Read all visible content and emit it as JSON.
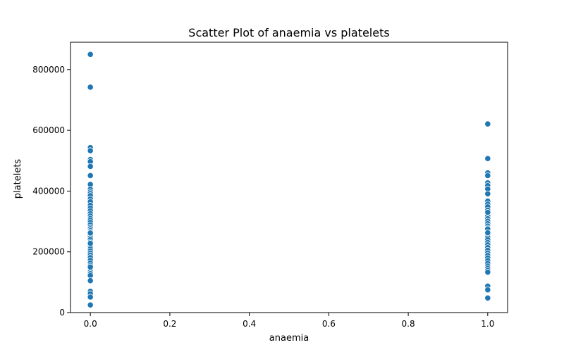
{
  "chart_data": {
    "type": "scatter",
    "title": "Scatter Plot of anaemia vs platelets",
    "xlabel": "anaemia",
    "ylabel": "platelets",
    "xlim": [
      -0.05,
      1.05
    ],
    "ylim": [
      0,
      890000
    ],
    "xticks": [
      0.0,
      0.2,
      0.4,
      0.6,
      0.8,
      1.0
    ],
    "xtick_labels": [
      "0.0",
      "0.2",
      "0.4",
      "0.6",
      "0.8",
      "1.0"
    ],
    "yticks": [
      0,
      200000,
      400000,
      600000,
      800000
    ],
    "ytick_labels": [
      "0",
      "200000",
      "400000",
      "600000",
      "800000"
    ],
    "grid": false,
    "marker_color": "#1f77b4",
    "series": [
      {
        "x": [
          0,
          0,
          0,
          0,
          0,
          0,
          0,
          0,
          0,
          0,
          0,
          0,
          0,
          0,
          0,
          0,
          0,
          0,
          0,
          0,
          0,
          0,
          0,
          0,
          0,
          0,
          0,
          0,
          0,
          0,
          0,
          0,
          0,
          0,
          0,
          0,
          0,
          0,
          0,
          0,
          0,
          0,
          0,
          0,
          0,
          0,
          0,
          0,
          0,
          0,
          0,
          0,
          0,
          0,
          0,
          0
        ],
        "y": [
          850000,
          742000,
          543000,
          533000,
          504000,
          497000,
          481000,
          451000,
          422000,
          406000,
          398000,
          392000,
          385000,
          374000,
          365000,
          353000,
          344000,
          335000,
          326000,
          318000,
          310000,
          304000,
          297000,
          289000,
          281000,
          276000,
          270000,
          265000,
          259000,
          253000,
          246000,
          240000,
          232000,
          224000,
          217000,
          210000,
          203000,
          196000,
          189000,
          181000,
          172000,
          163000,
          155000,
          147000,
          140000,
          134000,
          128000,
          122000,
          105000,
          70000,
          62000,
          51000,
          25000,
          228000,
          262000,
          150000
        ]
      },
      {
        "x": [
          1,
          1,
          1,
          1,
          1,
          1,
          1,
          1,
          1,
          1,
          1,
          1,
          1,
          1,
          1,
          1,
          1,
          1,
          1,
          1,
          1,
          1,
          1,
          1,
          1,
          1,
          1,
          1,
          1,
          1,
          1,
          1,
          1,
          1,
          1,
          1,
          1,
          1,
          1,
          1,
          1,
          1,
          1
        ],
        "y": [
          621000,
          507000,
          460000,
          451000,
          427000,
          418000,
          407000,
          391000,
          367000,
          357000,
          348000,
          337000,
          327000,
          318000,
          309000,
          301000,
          293000,
          285000,
          278000,
          270000,
          263000,
          256000,
          248000,
          240000,
          231000,
          223000,
          214000,
          205000,
          196000,
          188000,
          180000,
          171000,
          162000,
          153000,
          146000,
          139000,
          133000,
          87000,
          75000,
          48000,
          275000,
          330000,
          263000
        ]
      }
    ]
  }
}
